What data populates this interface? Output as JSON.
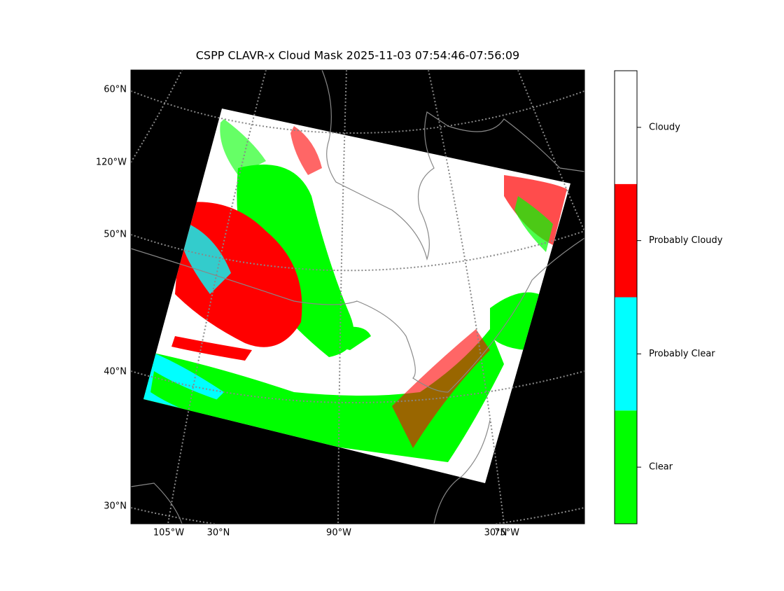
{
  "title": "CSPP CLAVR-x Cloud Mask 2025-11-03 07:54:46-07:56:09",
  "map": {
    "left_labels": [
      "60°N",
      "120°W",
      "50°N",
      "40°N",
      "30°N"
    ],
    "bottom_labels": [
      "105°W",
      "30°N",
      "90°W",
      "30°N",
      "75°W"
    ]
  },
  "colorbar": {
    "classes": [
      {
        "label": "Clear",
        "color": "#00ff00"
      },
      {
        "label": "Probably Clear",
        "color": "#00ffff"
      },
      {
        "label": "Probably Cloudy",
        "color": "#ff0000"
      },
      {
        "label": "Cloudy",
        "color": "#ffffff"
      }
    ]
  }
}
